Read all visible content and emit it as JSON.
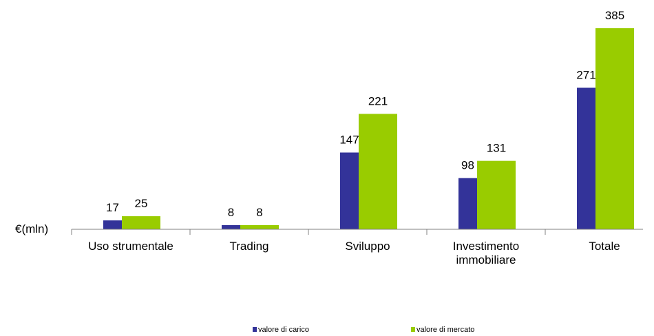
{
  "chart_data": {
    "type": "bar",
    "title": "",
    "unit_label": "€(mln)",
    "categories": [
      [
        "Uso  strumentale"
      ],
      [
        "Trading"
      ],
      [
        "Sviluppo"
      ],
      [
        "Investimento",
        "immobiliare"
      ],
      [
        "Totale"
      ]
    ],
    "series": [
      {
        "name": "valore di carico",
        "color": "#333399",
        "values": [
          17,
          8,
          147,
          98,
          271
        ]
      },
      {
        "name": "valore di mercato",
        "color": "#99CC00",
        "values": [
          25,
          8,
          221,
          131,
          385
        ]
      }
    ],
    "ylim": [
      0,
      385
    ],
    "grid": false,
    "legend_position": "bottom"
  }
}
